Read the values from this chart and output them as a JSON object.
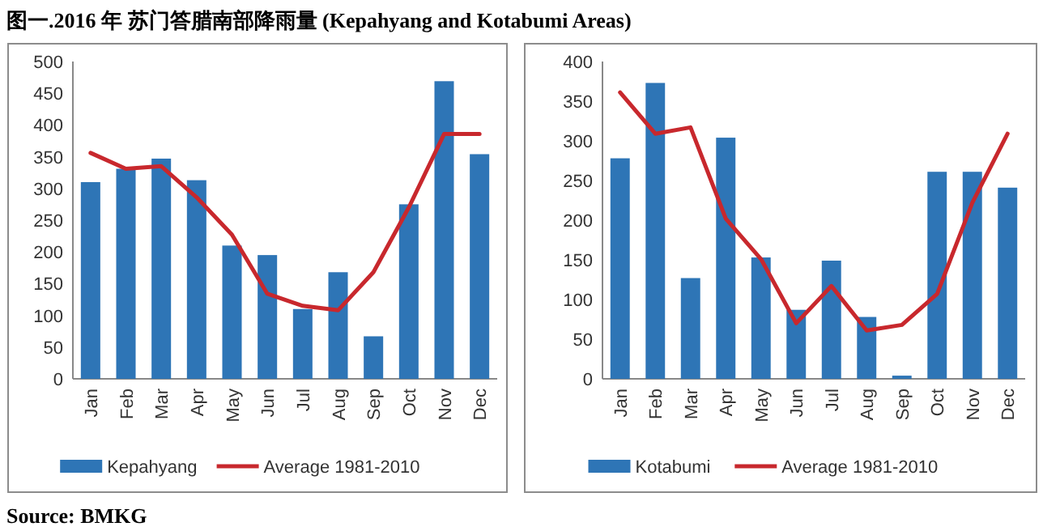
{
  "chart_data": [
    {
      "type": "bar",
      "title": "图一.2016 年 苏门答腊南部降雨量 (Kepahyang and Kotabumi Areas)",
      "annotations": [
        "Source: BMKG"
      ],
      "categories": [
        "Jan",
        "Feb",
        "Mar",
        "Apr",
        "May",
        "Jun",
        "Jul",
        "Aug",
        "Sep",
        "Oct",
        "Nov",
        "Dec"
      ],
      "series": [
        {
          "name": "Kepahyang",
          "color": "#2e75b6",
          "values": [
            310,
            331,
            347,
            313,
            210,
            195,
            110,
            168,
            67,
            275,
            469,
            354
          ]
        },
        {
          "name": "Average 1981-2010",
          "type": "line",
          "color": "#c8282d",
          "values": [
            356,
            331,
            335,
            286,
            227,
            134,
            115,
            108,
            168,
            270,
            386,
            386
          ]
        }
      ],
      "ylim": [
        0,
        500
      ],
      "yticks": [
        0,
        50,
        100,
        150,
        200,
        250,
        300,
        350,
        400,
        450,
        500
      ],
      "grid": false,
      "legend": "bottom"
    },
    {
      "type": "bar",
      "categories": [
        "Jan",
        "Feb",
        "Mar",
        "Apr",
        "May",
        "Jun",
        "Jul",
        "Aug",
        "Sep",
        "Oct",
        "Nov",
        "Dec"
      ],
      "series": [
        {
          "name": "Kotabumi",
          "color": "#2e75b6",
          "values": [
            278,
            373,
            127,
            304,
            153,
            87,
            149,
            78,
            4,
            261,
            261,
            241
          ]
        },
        {
          "name": "Average 1981-2010",
          "type": "line",
          "color": "#c8282d",
          "values": [
            361,
            309,
            317,
            202,
            151,
            70,
            117,
            61,
            68,
            107,
            222,
            309
          ]
        }
      ],
      "ylim": [
        0,
        400
      ],
      "yticks": [
        0,
        50,
        100,
        150,
        200,
        250,
        300,
        350,
        400
      ],
      "grid": false,
      "legend": "bottom"
    }
  ]
}
